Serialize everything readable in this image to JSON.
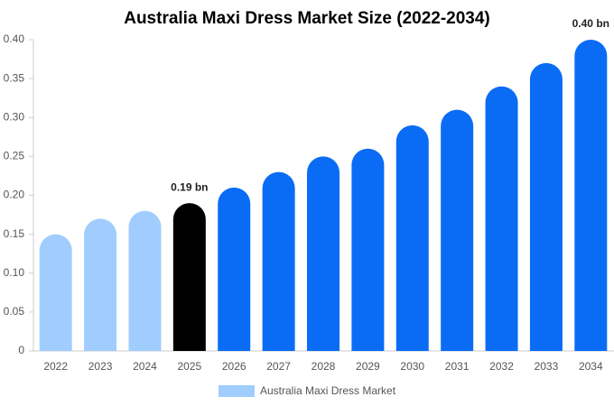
{
  "chart_data": {
    "type": "bar",
    "title": "Australia Maxi Dress Market Size (2022-2034)",
    "categories": [
      "2022",
      "2023",
      "2024",
      "2025",
      "2026",
      "2027",
      "2028",
      "2029",
      "2030",
      "2031",
      "2032",
      "2033",
      "2034"
    ],
    "series": [
      {
        "name": "Australia Maxi Dress Market",
        "color": "#a0cdfd",
        "colors": [
          "#a0cdfd",
          "#a0cdfd",
          "#a0cdfd",
          "#000000",
          "#0a6cf5",
          "#0a6cf5",
          "#0a6cf5",
          "#0a6cf5",
          "#0a6cf5",
          "#0a6cf5",
          "#0a6cf5",
          "#0a6cf5",
          "#0a6cf5"
        ],
        "values": [
          0.15,
          0.17,
          0.18,
          0.19,
          0.21,
          0.23,
          0.25,
          0.26,
          0.29,
          0.31,
          0.34,
          0.37,
          0.4
        ],
        "value_labels": [
          null,
          null,
          null,
          "0.19 bn",
          null,
          null,
          null,
          null,
          null,
          null,
          null,
          null,
          "0.40 bn"
        ]
      }
    ],
    "ylim": [
      0,
      0.4
    ],
    "yticks": [
      0,
      0.05,
      {
        "value": 0.1,
        "label": "0.10"
      },
      0.15,
      {
        "value": 0.2,
        "label": "0.20"
      },
      0.25,
      {
        "value": 0.3,
        "label": "0.30"
      },
      0.35,
      {
        "value": 0.4,
        "label": "0.40"
      }
    ]
  }
}
